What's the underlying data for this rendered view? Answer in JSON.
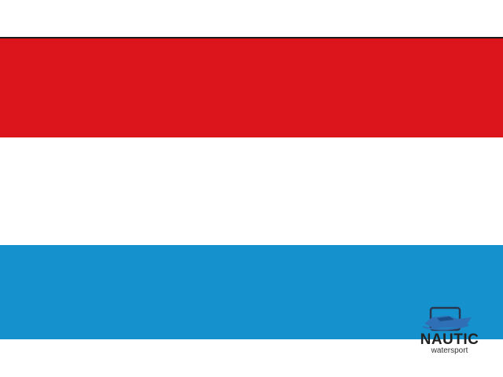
{
  "flag": {
    "stripes": [
      {
        "color": "#dc151c"
      },
      {
        "color": "#ffffff"
      },
      {
        "color": "#1592ce"
      }
    ]
  },
  "logo": {
    "name": "NAUTIC",
    "tagline": "watersport",
    "icon": "motorboat-icon",
    "accent": "#2f6fb5"
  }
}
